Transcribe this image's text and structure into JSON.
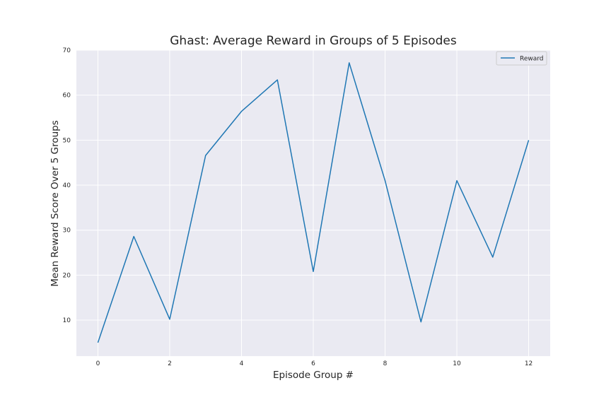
{
  "chart_data": {
    "type": "line",
    "title": "Ghast: Average Reward in Groups of 5 Episodes",
    "xlabel": "Episode Group #",
    "ylabel": "Mean Reward Score Over 5 Groups",
    "xlim": [
      -0.6,
      12.6
    ],
    "ylim": [
      2,
      70
    ],
    "xticks": [
      "0",
      "2",
      "4",
      "6",
      "8",
      "10",
      "12"
    ],
    "yticks": [
      "10",
      "20",
      "30",
      "40",
      "50",
      "60",
      "70"
    ],
    "grid": true,
    "legend_position": "top-right",
    "x": [
      0,
      1,
      2,
      3,
      4,
      5,
      6,
      7,
      8,
      9,
      10,
      11,
      12
    ],
    "series": [
      {
        "name": "Reward",
        "color": "#1f77b4",
        "values": [
          5.0,
          28.6,
          10.2,
          46.6,
          56.4,
          63.4,
          20.8,
          67.2,
          41.0,
          9.6,
          41.0,
          24.0,
          50.0
        ]
      }
    ]
  }
}
